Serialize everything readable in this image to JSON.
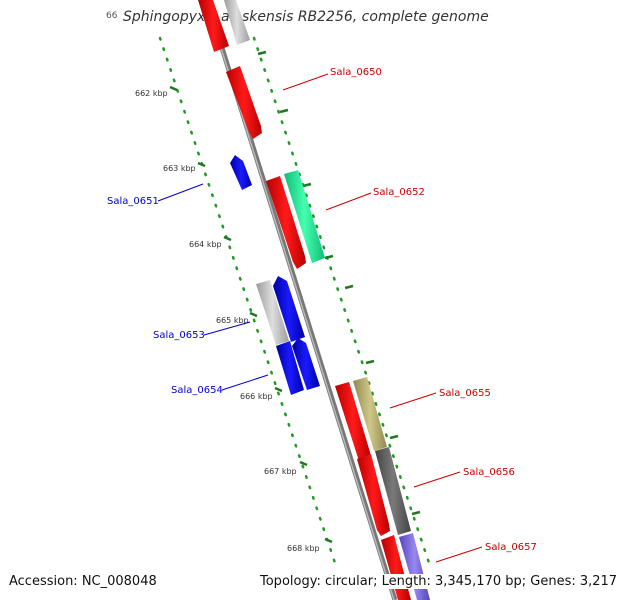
{
  "title": "Sphingopyxis alaskensis RB2256, complete genome",
  "title_prefix": "66",
  "accession": "Accession: NC_008048",
  "topology": "Topology: circular; Length: 3,345,170 bp; Genes: 3,217",
  "ticks": [
    "662 kbp",
    "663 kbp",
    "664 kbp",
    "665 kbp",
    "666 kbp",
    "667 kbp",
    "668 kbp"
  ],
  "gene_labels": {
    "sala_0650": "Sala_0650",
    "sala_0651": "Sala_0651",
    "sala_0652": "Sala_0652",
    "sala_0653": "Sala_0653",
    "sala_0654": "Sala_0654",
    "sala_0655": "Sala_0655",
    "sala_0656": "Sala_0656",
    "sala_0657": "Sala_0657"
  },
  "colors": {
    "backbone": "#888888",
    "forward_cds": "#ee0000",
    "reverse_cds": "#0000dd",
    "rna_gray": "#c4c4c4",
    "green_feature": "#22ee99",
    "olive_feature": "#b8b070",
    "dark_feature": "#666666",
    "purple_feature": "#7766dd",
    "tick": "#227722",
    "label_forward": "#cc0000",
    "label_reverse": "#0000cc"
  }
}
